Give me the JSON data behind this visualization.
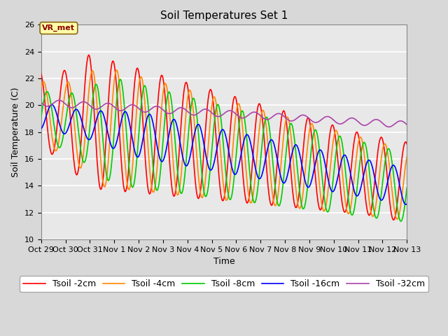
{
  "title": "Soil Temperatures Set 1",
  "xlabel": "Time",
  "ylabel": "Soil Temperature (C)",
  "ylim": [
    10,
    26
  ],
  "xtick_labels": [
    "Oct 29",
    "Oct 30",
    "Oct 31",
    "Nov 1",
    "Nov 2",
    "Nov 3",
    "Nov 4",
    "Nov 5",
    "Nov 6",
    "Nov 7",
    "Nov 8",
    "Nov 9",
    "Nov 10",
    "Nov 11",
    "Nov 12",
    "Nov 13"
  ],
  "colors": {
    "tsoil_2cm": "#ff0000",
    "tsoil_4cm": "#ff8800",
    "tsoil_8cm": "#00cc00",
    "tsoil_16cm": "#0000ff",
    "tsoil_32cm": "#aa44aa"
  },
  "legend_labels": [
    "Tsoil -2cm",
    "Tsoil -4cm",
    "Tsoil -8cm",
    "Tsoil -16cm",
    "Tsoil -32cm"
  ],
  "annotation_text": "VR_met",
  "background_color": "#e8e8e8",
  "fig_background": "#d8d8d8",
  "grid_color": "#ffffff",
  "title_fontsize": 11,
  "tick_fontsize": 8,
  "legend_fontsize": 9
}
